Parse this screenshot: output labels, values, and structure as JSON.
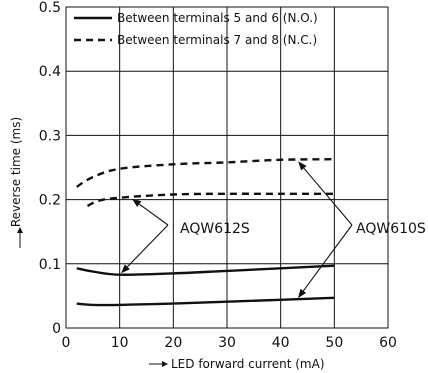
{
  "chart_data": {
    "type": "line",
    "xlabel": "LED forward current (mA)",
    "ylabel": "Reverse time (ms)",
    "xlim": [
      0,
      60
    ],
    "ylim": [
      0,
      0.5
    ],
    "x_ticks": [
      "0",
      "10",
      "20",
      "30",
      "40",
      "50",
      "60"
    ],
    "y_ticks": [
      "0",
      "0.1",
      "0.2",
      "0.3",
      "0.4",
      "0.5"
    ],
    "grid": true,
    "legend_position": "top-left",
    "legend": [
      {
        "label": "Between terminals 5 and 6 (N.O.)",
        "style": "solid"
      },
      {
        "label": "Between terminals 7 and 8 (N.C.)",
        "style": "dashed"
      }
    ],
    "series": [
      {
        "style": "dashed",
        "x": [
          2,
          5,
          10,
          20,
          30,
          40,
          50
        ],
        "y": [
          0.22,
          0.235,
          0.248,
          0.255,
          0.258,
          0.262,
          0.263
        ]
      },
      {
        "style": "dashed",
        "x": [
          4,
          6,
          10,
          20,
          30,
          40,
          50
        ],
        "y": [
          0.19,
          0.198,
          0.203,
          0.208,
          0.209,
          0.209,
          0.209
        ]
      },
      {
        "style": "solid",
        "x": [
          2,
          5,
          10,
          20,
          30,
          40,
          50
        ],
        "y": [
          0.093,
          0.088,
          0.083,
          0.085,
          0.089,
          0.093,
          0.097
        ]
      },
      {
        "style": "solid",
        "x": [
          2,
          5,
          10,
          20,
          30,
          40,
          50
        ],
        "y": [
          0.038,
          0.036,
          0.036,
          0.038,
          0.041,
          0.044,
          0.047
        ]
      }
    ],
    "annotations": [
      {
        "text": "AQW612S",
        "targets": [
          [
            12,
            0.203
          ],
          [
            10,
            0.083
          ]
        ]
      },
      {
        "text": "AQW610S",
        "targets": [
          [
            43,
            0.262
          ],
          [
            43,
            0.044
          ]
        ]
      }
    ]
  }
}
